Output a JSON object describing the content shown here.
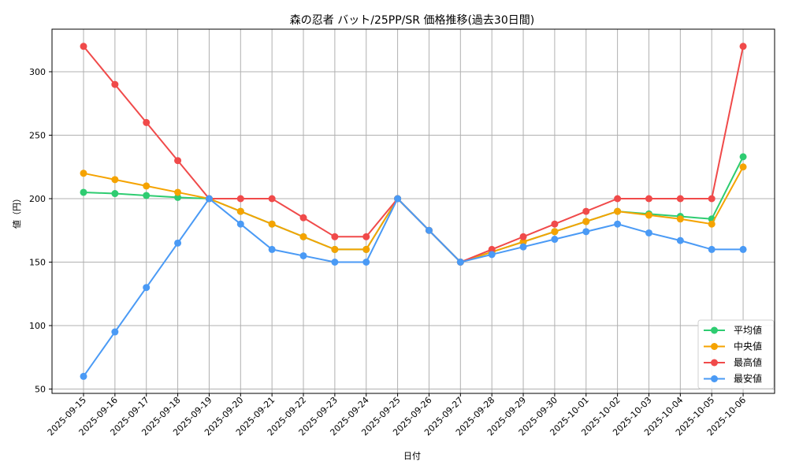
{
  "chart_data": {
    "type": "line",
    "title": "森の忍者 バット/25PP/SR 価格推移(過去30日間)",
    "xlabel": "日付",
    "ylabel": "値（円）",
    "ylim": [
      45,
      333
    ],
    "yticks": [
      50,
      100,
      150,
      200,
      250,
      300
    ],
    "grid": true,
    "legend_position": "lower right",
    "x": [
      "2025-09-15",
      "2025-09-16",
      "2025-09-17",
      "2025-09-18",
      "2025-09-19",
      "2025-09-20",
      "2025-09-21",
      "2025-09-22",
      "2025-09-23",
      "2025-09-24",
      "2025-09-25",
      "2025-09-26",
      "2025-09-27",
      "2025-09-28",
      "2025-09-29",
      "2025-09-30",
      "2025-10-01",
      "2025-10-02",
      "2025-10-03",
      "2025-10-04",
      "2025-10-05",
      "2025-10-06"
    ],
    "series": [
      {
        "name": "平均値",
        "color": "#2ecc71",
        "values": [
          205,
          204,
          202.5,
          201,
          200,
          190,
          180,
          170,
          160,
          160,
          200,
          175,
          150,
          158,
          166,
          174,
          182,
          190,
          188,
          186,
          184,
          233
        ]
      },
      {
        "name": "中央値",
        "color": "#f5a300",
        "values": [
          220,
          215,
          210,
          205,
          200,
          190,
          180,
          170,
          160,
          160,
          200,
          175,
          150,
          158,
          166,
          174,
          182,
          190,
          187,
          184,
          180,
          225
        ]
      },
      {
        "name": "最高値",
        "color": "#f04a4a",
        "values": [
          320,
          290,
          260,
          230,
          200,
          200,
          200,
          185,
          170,
          170,
          200,
          175,
          150,
          160,
          170,
          180,
          190,
          200,
          200,
          200,
          200,
          320
        ]
      },
      {
        "name": "最安値",
        "color": "#4a9af5",
        "values": [
          60,
          95,
          130,
          165,
          200,
          180,
          160,
          155,
          150,
          150,
          200,
          175,
          150,
          156,
          162,
          168,
          174,
          180,
          173,
          167,
          160,
          160
        ]
      }
    ]
  }
}
